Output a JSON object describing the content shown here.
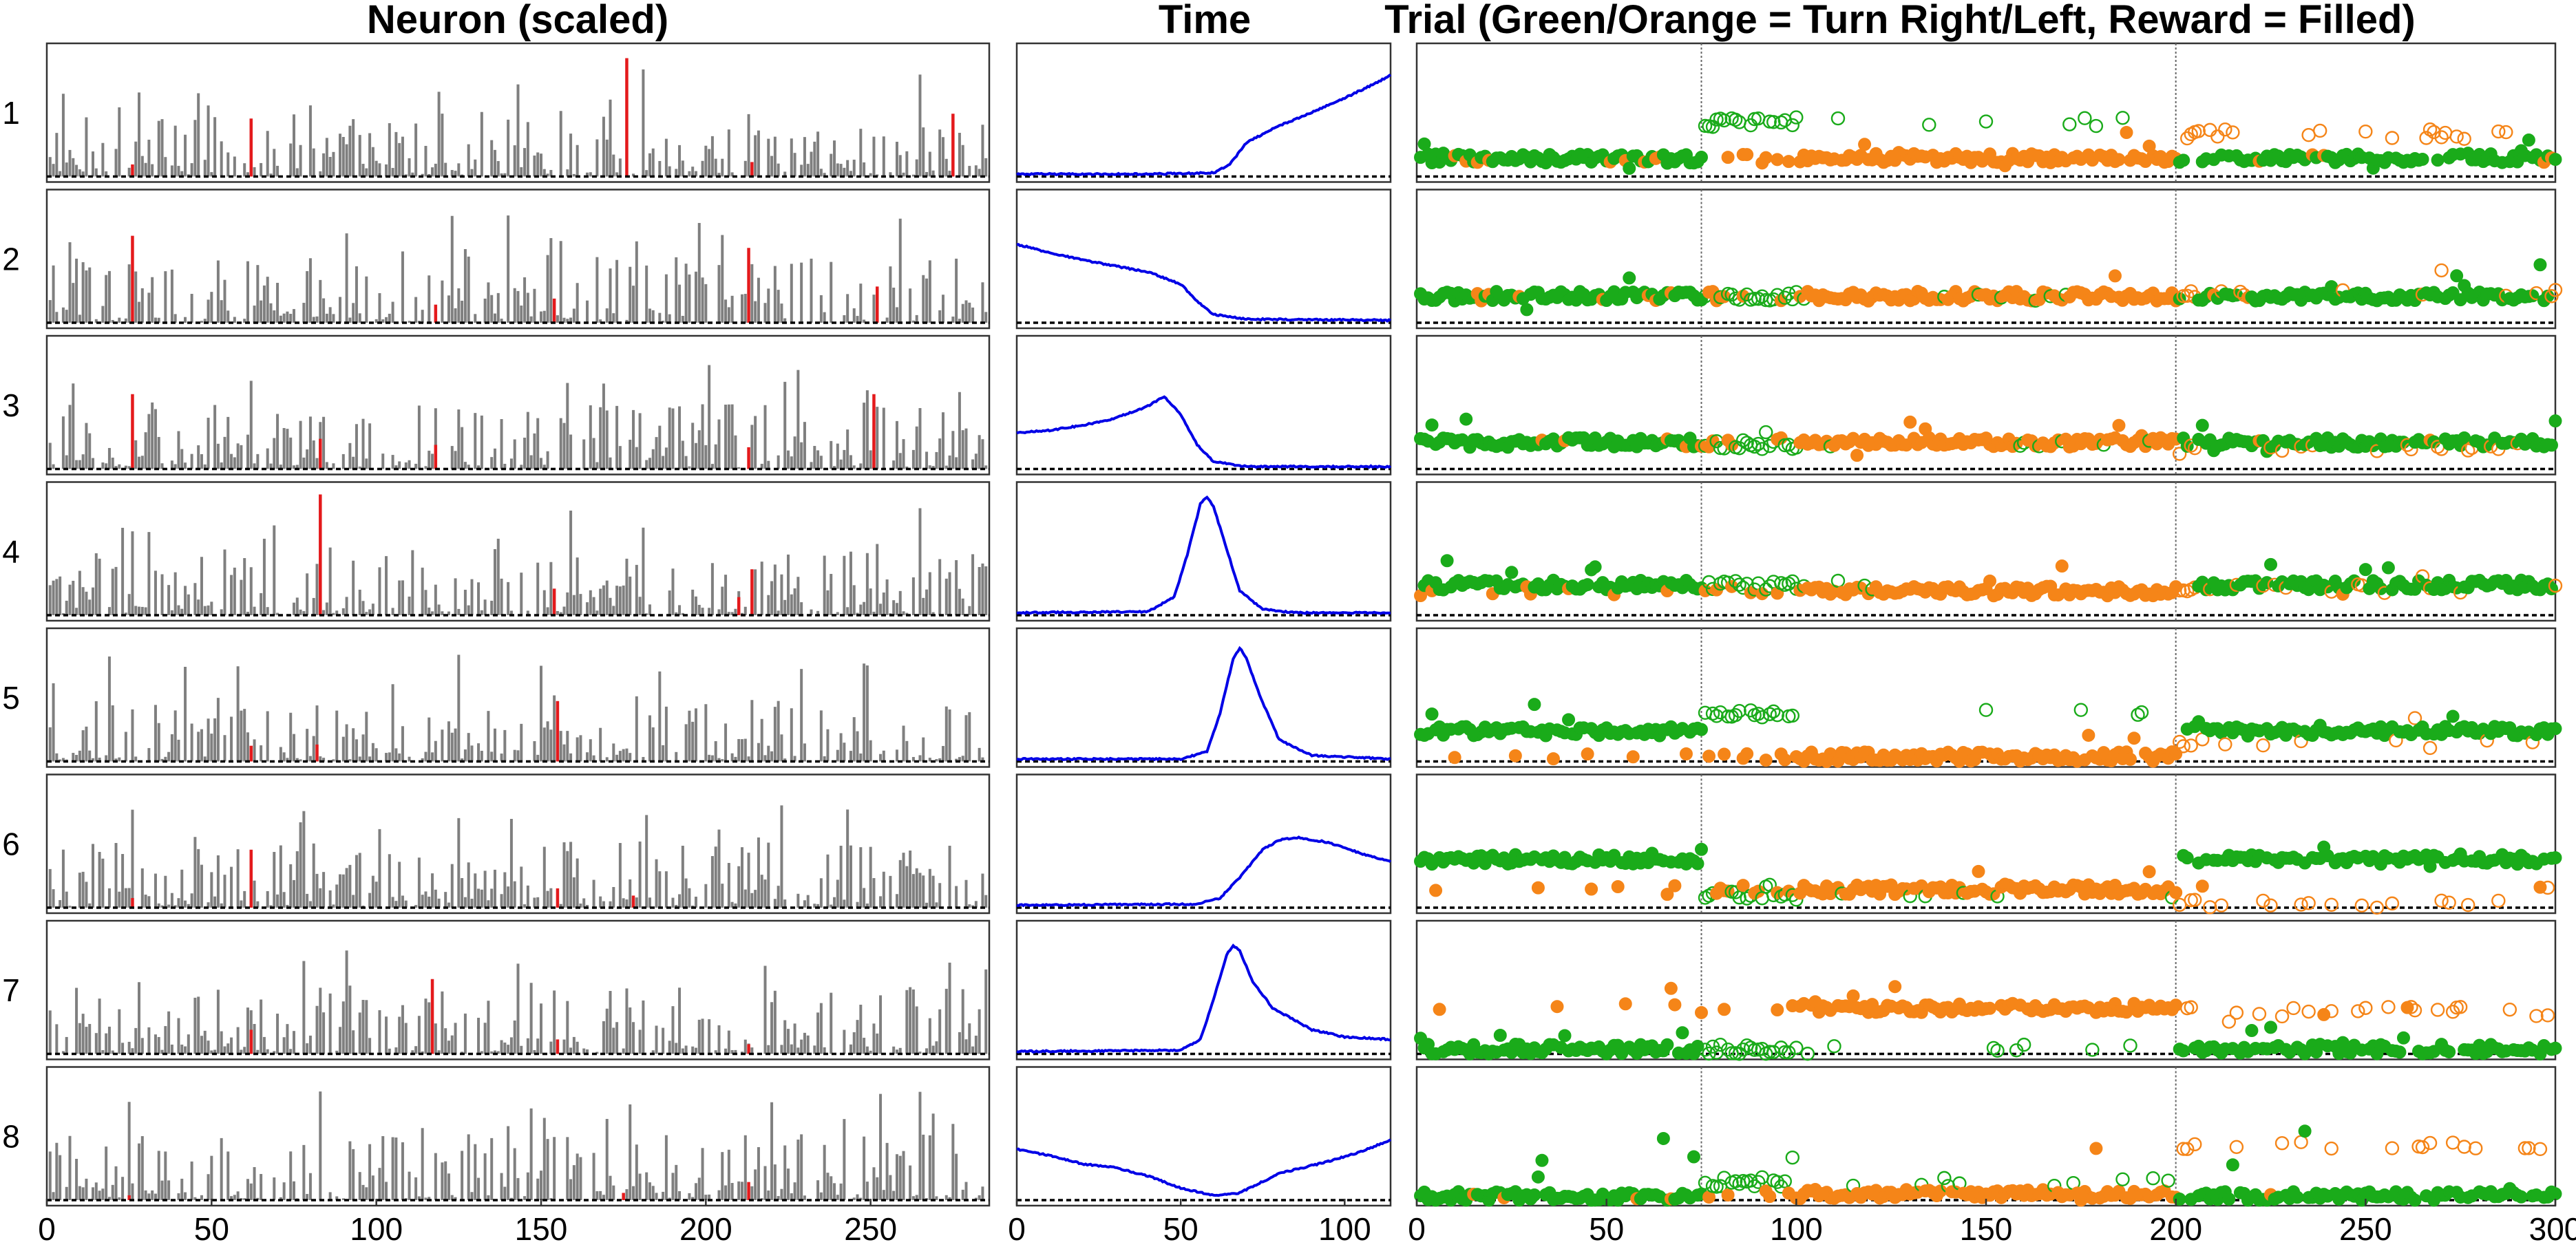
{
  "chart_data": {
    "type": "multi-panel",
    "columns": [
      {
        "id": "neuron",
        "title": "Neuron (scaled)",
        "plot": "bar",
        "x_range": [
          0,
          286
        ],
        "x_ticks": [
          0,
          50,
          100,
          150,
          200,
          250
        ],
        "highlight_color": "#e41a1c",
        "bar_color": "#7f7f7f"
      },
      {
        "id": "time",
        "title": "Time",
        "plot": "line",
        "x_range": [
          0,
          114
        ],
        "x_ticks": [
          0,
          50,
          100
        ],
        "line_color": "#0000e6"
      },
      {
        "id": "trial",
        "title": "Trial (Green/Orange = Turn Right/Left, Reward = Filled)",
        "plot": "scatter",
        "x_range": [
          0,
          300
        ],
        "x_ticks": [
          0,
          50,
          100,
          150,
          200,
          250,
          300
        ],
        "block_boundaries": [
          75,
          200
        ],
        "green": "#1aab1a",
        "orange": "#f58518"
      }
    ],
    "rows": [
      {
        "label": "1",
        "neuron": {
          "highlights": [
            {
              "x": 62,
              "h": 0.48
            },
            {
              "x": 176,
              "h": 0.98
            },
            {
              "x": 275,
              "h": 0.52
            },
            {
              "x": 26,
              "h": 0.1
            },
            {
              "x": 214,
              "h": 0.12
            }
          ]
        },
        "time": [
          [
            0,
            0.02
          ],
          [
            40,
            0.02
          ],
          [
            60,
            0.03
          ],
          [
            65,
            0.1
          ],
          [
            70,
            0.28
          ],
          [
            80,
            0.42
          ],
          [
            90,
            0.53
          ],
          [
            100,
            0.65
          ],
          [
            110,
            0.78
          ],
          [
            114,
            0.84
          ]
        ],
        "trial": {
          "right_level": 0.15,
          "left_level": 0.15,
          "right_cue_level": 0.35,
          "left_cue_level": 0.35,
          "right_cue_block_level": 0.45,
          "left_cue_block_level": 0.35,
          "outlier_spread": 0.3
        }
      },
      {
        "label": "2",
        "neuron": {
          "highlights": [
            {
              "x": 26,
              "h": 0.72
            },
            {
              "x": 213,
              "h": 0.62
            },
            {
              "x": 252,
              "h": 0.3
            },
            {
              "x": 154,
              "h": 0.2
            },
            {
              "x": 118,
              "h": 0.15
            }
          ]
        },
        "time": [
          [
            0,
            0.65
          ],
          [
            10,
            0.58
          ],
          [
            20,
            0.52
          ],
          [
            30,
            0.47
          ],
          [
            40,
            0.42
          ],
          [
            50,
            0.32
          ],
          [
            55,
            0.18
          ],
          [
            60,
            0.07
          ],
          [
            70,
            0.03
          ],
          [
            114,
            0.02
          ]
        ],
        "trial": {
          "right_level": 0.22,
          "left_level": 0.22,
          "right_cue_level": 0.2,
          "left_cue_level": 0.2,
          "right_cue_block_level": 0.22,
          "left_cue_block_level": 0.25,
          "outlier_spread": 0.35
        }
      },
      {
        "label": "3",
        "neuron": {
          "highlights": [
            {
              "x": 26,
              "h": 0.62
            },
            {
              "x": 251,
              "h": 0.62
            },
            {
              "x": 83,
              "h": 0.25
            },
            {
              "x": 118,
              "h": 0.2
            },
            {
              "x": 213,
              "h": 0.18
            }
          ]
        },
        "time": [
          [
            0,
            0.3
          ],
          [
            10,
            0.32
          ],
          [
            20,
            0.36
          ],
          [
            30,
            0.42
          ],
          [
            40,
            0.52
          ],
          [
            45,
            0.6
          ],
          [
            50,
            0.45
          ],
          [
            55,
            0.2
          ],
          [
            60,
            0.06
          ],
          [
            70,
            0.02
          ],
          [
            114,
            0.02
          ]
        ],
        "trial": {
          "right_level": 0.22,
          "left_level": 0.22,
          "right_cue_level": 0.22,
          "left_cue_level": 0.2,
          "right_cue_block_level": 0.2,
          "left_cue_block_level": 0.18,
          "outlier_spread": 0.4
        }
      },
      {
        "label": "4",
        "neuron": {
          "highlights": [
            {
              "x": 83,
              "h": 1.0
            },
            {
              "x": 154,
              "h": 0.22
            },
            {
              "x": 214,
              "h": 0.38
            },
            {
              "x": 210,
              "h": 0.15
            }
          ]
        },
        "time": [
          [
            0,
            0.02
          ],
          [
            40,
            0.03
          ],
          [
            48,
            0.15
          ],
          [
            52,
            0.5
          ],
          [
            56,
            0.92
          ],
          [
            58,
            0.98
          ],
          [
            60,
            0.9
          ],
          [
            64,
            0.55
          ],
          [
            68,
            0.2
          ],
          [
            75,
            0.05
          ],
          [
            85,
            0.02
          ],
          [
            114,
            0.02
          ]
        ],
        "trial": {
          "right_level": 0.25,
          "left_level": 0.2,
          "right_cue_level": 0.25,
          "left_cue_level": 0.25,
          "right_cue_block_level": 0.25,
          "left_cue_block_level": 0.22,
          "outlier_spread": 0.3
        }
      },
      {
        "label": "5",
        "neuron": {
          "highlights": [
            {
              "x": 155,
              "h": 0.5
            },
            {
              "x": 62,
              "h": 0.13
            },
            {
              "x": 82,
              "h": 0.14
            }
          ]
        },
        "time": [
          [
            0,
            0.02
          ],
          [
            50,
            0.02
          ],
          [
            58,
            0.08
          ],
          [
            62,
            0.4
          ],
          [
            66,
            0.85
          ],
          [
            68,
            0.94
          ],
          [
            70,
            0.86
          ],
          [
            74,
            0.55
          ],
          [
            80,
            0.18
          ],
          [
            90,
            0.05
          ],
          [
            114,
            0.02
          ]
        ],
        "trial": {
          "right_level": 0.25,
          "left_level": 0.04,
          "right_cue_level": 0.35,
          "left_cue_level": 0.1,
          "right_cue_block_level": 0.4,
          "left_cue_block_level": 0.15,
          "outlier_spread": 0.3
        }
      },
      {
        "label": "6",
        "neuron": {
          "highlights": [
            {
              "x": 62,
              "h": 0.48
            },
            {
              "x": 155,
              "h": 0.16
            },
            {
              "x": 178,
              "h": 0.1
            },
            {
              "x": 26,
              "h": 0.08
            }
          ]
        },
        "time": [
          [
            0,
            0.02
          ],
          [
            55,
            0.03
          ],
          [
            62,
            0.08
          ],
          [
            68,
            0.25
          ],
          [
            75,
            0.48
          ],
          [
            80,
            0.56
          ],
          [
            86,
            0.58
          ],
          [
            95,
            0.54
          ],
          [
            105,
            0.45
          ],
          [
            114,
            0.38
          ]
        ],
        "trial": {
          "right_level": 0.4,
          "left_level": 0.15,
          "right_cue_level": 0.1,
          "left_cue_level": 0.02,
          "right_cue_block_level": 0.1,
          "left_cue_block_level": 0.03,
          "outlier_spread": 0.2
        }
      },
      {
        "label": "7",
        "neuron": {
          "highlights": [
            {
              "x": 117,
              "h": 0.62
            },
            {
              "x": 62,
              "h": 0.2
            },
            {
              "x": 155,
              "h": 0.12
            },
            {
              "x": 213,
              "h": 0.08
            }
          ]
        },
        "time": [
          [
            0,
            0.02
          ],
          [
            50,
            0.03
          ],
          [
            56,
            0.12
          ],
          [
            60,
            0.45
          ],
          [
            64,
            0.82
          ],
          [
            66,
            0.9
          ],
          [
            68,
            0.85
          ],
          [
            72,
            0.6
          ],
          [
            78,
            0.38
          ],
          [
            90,
            0.2
          ],
          [
            100,
            0.14
          ],
          [
            114,
            0.12
          ]
        ],
        "trial": {
          "right_level": 0.04,
          "left_level": 0.38,
          "right_cue_level": 0.04,
          "left_cue_level": 0.35,
          "right_cue_block_level": 0.04,
          "left_cue_block_level": 0.35,
          "outlier_spread": 0.25
        }
      },
      {
        "label": "8",
        "neuron": {
          "highlights": [
            {
              "x": 213,
              "h": 0.15
            },
            {
              "x": 175,
              "h": 0.06
            },
            {
              "x": 25,
              "h": 0.04
            }
          ]
        },
        "time": [
          [
            0,
            0.42
          ],
          [
            10,
            0.37
          ],
          [
            20,
            0.3
          ],
          [
            30,
            0.27
          ],
          [
            40,
            0.2
          ],
          [
            50,
            0.1
          ],
          [
            60,
            0.04
          ],
          [
            68,
            0.06
          ],
          [
            80,
            0.22
          ],
          [
            95,
            0.32
          ],
          [
            105,
            0.4
          ],
          [
            114,
            0.5
          ]
        ],
        "trial": {
          "right_level": 0.03,
          "left_level": 0.05,
          "right_cue_level": 0.2,
          "left_cue_level": 0.1,
          "right_cue_block_level": 0.15,
          "left_cue_block_level": 0.45,
          "outlier_spread": 0.8
        }
      }
    ]
  }
}
